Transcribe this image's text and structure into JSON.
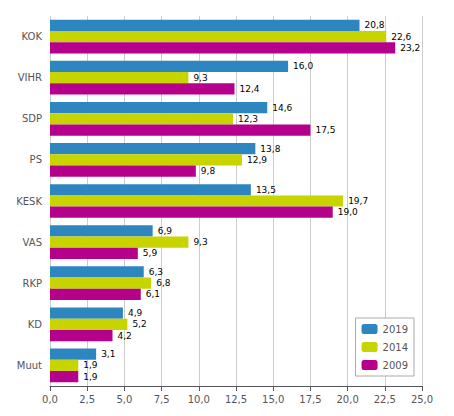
{
  "chart_data": {
    "type": "bar",
    "orientation": "horizontal",
    "categories": [
      "KOK",
      "VIHR",
      "SDP",
      "PS",
      "KESK",
      "VAS",
      "RKP",
      "KD",
      "Muut"
    ],
    "series": [
      {
        "name": "2019",
        "color": "#2E86C1",
        "values": [
          20.8,
          16.0,
          14.6,
          13.8,
          13.5,
          6.9,
          6.3,
          4.9,
          3.1
        ],
        "value_labels": [
          "20,8",
          "16,0",
          "14,6",
          "13,8",
          "13,5",
          "6,9",
          "6,3",
          "4,9",
          "3,1"
        ]
      },
      {
        "name": "2014",
        "color": "#C8D400",
        "values": [
          22.6,
          9.3,
          12.3,
          12.9,
          19.7,
          9.3,
          6.8,
          5.2,
          1.9
        ],
        "value_labels": [
          "22,6",
          "9,3",
          "12,3",
          "12,9",
          "19,7",
          "9,3",
          "6,8",
          "5,2",
          "1,9"
        ]
      },
      {
        "name": "2009",
        "color": "#B5008C",
        "values": [
          23.2,
          12.4,
          17.5,
          9.8,
          19.0,
          5.9,
          6.1,
          4.2,
          1.9
        ],
        "value_labels": [
          "23,2",
          "12,4",
          "17,5",
          "9,8",
          "19,0",
          "5,9",
          "6,1",
          "4,2",
          "1,9"
        ]
      }
    ],
    "xlim": [
      0,
      25
    ],
    "xticks": [
      {
        "value": 0,
        "label": "0,0"
      },
      {
        "value": 2.5,
        "label": "2,5"
      },
      {
        "value": 5.0,
        "label": "5,0"
      },
      {
        "value": 7.5,
        "label": "7,5"
      },
      {
        "value": 10.0,
        "label": "10,0"
      },
      {
        "value": 12.5,
        "label": "12,5"
      },
      {
        "value": 15.0,
        "label": "15,0"
      },
      {
        "value": 17.5,
        "label": "17,5"
      },
      {
        "value": 20.0,
        "label": "20,0"
      },
      {
        "value": 22.5,
        "label": "22,5"
      },
      {
        "value": 25.0,
        "label": "25,0"
      }
    ],
    "grid": true,
    "legend": "lower right",
    "data_labels": true
  }
}
